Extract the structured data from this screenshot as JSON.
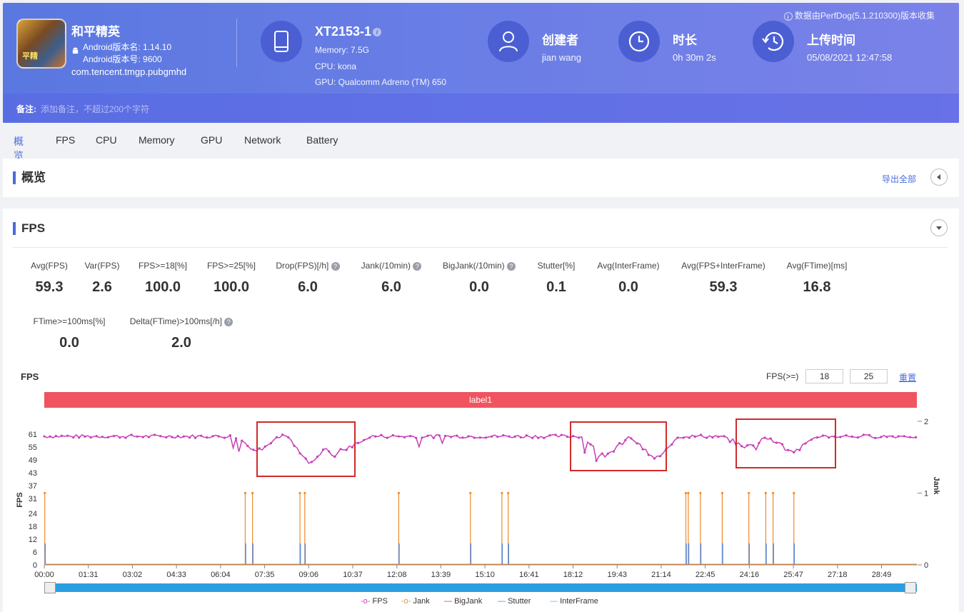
{
  "header": {
    "app_name": "和平精英",
    "app_version_name": "Android版本名: 1.14.10",
    "app_version_code": "Android版本号: 9600",
    "package": "com.tencent.tmgp.pubgmhd",
    "device_name": "XT2153-1",
    "memory": "Memory: 7.5G",
    "cpu": "CPU: kona",
    "gpu": "GPU: Qualcomm Adreno (TM) 650",
    "creator_title": "创建者",
    "creator_value": "jian wang",
    "duration_title": "时长",
    "duration_value": "0h 30m 2s",
    "upload_title": "上传时间",
    "upload_value": "05/08/2021 12:47:58",
    "source_note": "数据由PerfDog(5.1.210300)版本收集",
    "note_label": "备注:",
    "note_placeholder": "添加备注，不超过200个字符"
  },
  "tabs": [
    "概览",
    "FPS",
    "CPU",
    "Memory",
    "GPU",
    "Network",
    "Battery"
  ],
  "overview": {
    "title": "概览",
    "export": "导出全部"
  },
  "fps_section": {
    "title": "FPS",
    "metrics_row1": [
      {
        "label": "Avg(FPS)",
        "value": "59.3"
      },
      {
        "label": "Var(FPS)",
        "value": "2.6"
      },
      {
        "label": "FPS>=18[%]",
        "value": "100.0"
      },
      {
        "label": "FPS>=25[%]",
        "value": "100.0"
      },
      {
        "label": "Drop(FPS)[/h]",
        "value": "6.0"
      },
      {
        "label": "Jank(/10min)",
        "value": "6.0"
      },
      {
        "label": "BigJank(/10min)",
        "value": "0.0"
      },
      {
        "label": "Stutter[%]",
        "value": "0.1"
      },
      {
        "label": "Avg(InterFrame)",
        "value": "0.0"
      },
      {
        "label": "Avg(FPS+InterFrame)",
        "value": "59.3"
      },
      {
        "label": "Avg(FTime)[ms]",
        "value": "16.8"
      }
    ],
    "metrics_row2": [
      {
        "label": "FTime>=100ms[%]",
        "value": "0.0"
      },
      {
        "label": "Delta(FTime)>100ms[/h]",
        "value": "2.0"
      }
    ]
  },
  "chart_controls": {
    "chart_label": "FPS",
    "threshold_label": "FPS(>=)",
    "threshold_1": "18",
    "threshold_2": "25",
    "reset": "重置",
    "band_label": "label1"
  },
  "chart_data": {
    "type": "line",
    "ylabel": "FPS",
    "y2label": "Jank",
    "y_ticks": [
      0,
      6,
      12,
      18,
      24,
      31,
      37,
      43,
      49,
      55,
      61
    ],
    "y2_ticks": [
      0,
      1,
      2
    ],
    "x_ticks": [
      "00:00",
      "01:31",
      "03:02",
      "04:33",
      "06:04",
      "07:35",
      "09:06",
      "10:37",
      "12:08",
      "13:39",
      "15:10",
      "16:41",
      "18:12",
      "19:43",
      "21:14",
      "22:45",
      "24:16",
      "25:47",
      "27:18",
      "28:49"
    ],
    "ylim": [
      0,
      61
    ],
    "y2lim": [
      0,
      2
    ],
    "fps_baseline": 60,
    "fps_dips": [
      {
        "t": "07:20",
        "fps": 53
      },
      {
        "t": "09:10",
        "fps": 47
      },
      {
        "t": "10:00",
        "fps": 51
      },
      {
        "t": "10:25",
        "fps": 54
      },
      {
        "t": "19:20",
        "fps": 51
      },
      {
        "t": "21:00",
        "fps": 49
      },
      {
        "t": "24:10",
        "fps": 55
      },
      {
        "t": "25:45",
        "fps": 52
      }
    ],
    "jank_times": [
      "00:01",
      "06:55",
      "07:10",
      "08:48",
      "08:58",
      "12:12",
      "14:40",
      "15:45",
      "15:58",
      "22:05",
      "22:10",
      "22:35",
      "23:20",
      "24:15",
      "24:50",
      "25:05",
      "25:48"
    ],
    "series": [
      {
        "name": "FPS",
        "color": "#c93fb8"
      },
      {
        "name": "Jank",
        "color": "#f08a2c"
      },
      {
        "name": "BigJank",
        "color": "#d63c3c"
      },
      {
        "name": "Stutter",
        "color": "#5b8ad6"
      },
      {
        "name": "InterFrame",
        "color": "#4fc3f0"
      }
    ]
  }
}
